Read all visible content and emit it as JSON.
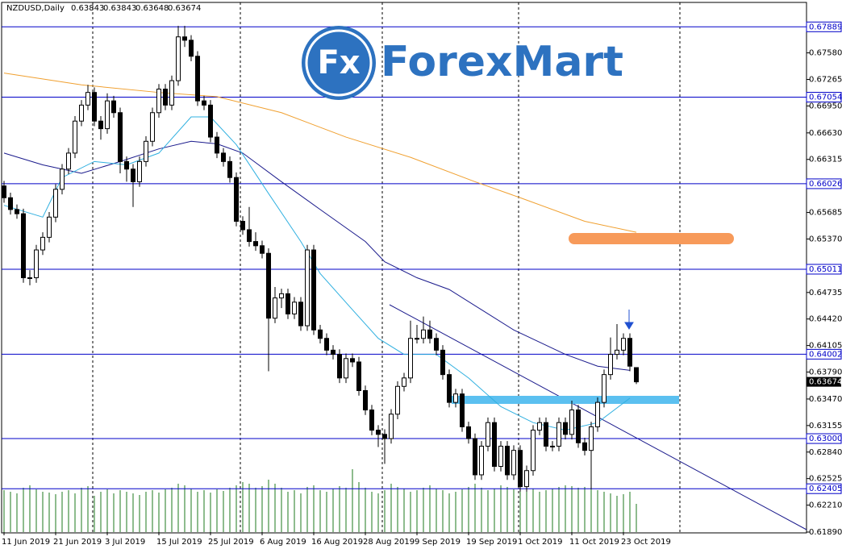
{
  "logo": {
    "badge": "Fx",
    "name": "ForexMart"
  },
  "chart_data": {
    "type": "candlestick",
    "title": "NZDUSD,Daily",
    "ylim": [
      0.6189,
      0.6816
    ],
    "yticks": [
      {
        "value": 0.6758,
        "label": "0.67580"
      },
      0.67265,
      {
        "value": 0.6695,
        "label": "0.66950"
      },
      {
        "value": 0.6663,
        "label": "0.66630"
      },
      0.66315,
      0.65685,
      {
        "value": 0.6537,
        "label": "0.65370"
      },
      0.64735,
      {
        "value": 0.6442,
        "label": "0.64420"
      },
      0.64105,
      {
        "value": 0.6379,
        "label": "0.63790"
      },
      {
        "value": 0.6347,
        "label": "0.63470"
      },
      0.63155,
      {
        "value": 0.6284,
        "label": "0.62840"
      },
      0.62525,
      {
        "value": 0.6221,
        "label": "0.62210"
      },
      {
        "value": 0.6189,
        "label": "0.61890"
      }
    ],
    "levels": [
      0.67889,
      0.67054,
      0.66026,
      0.65011,
      0.64002,
      {
        "value": 0.63,
        "label": "0.63000"
      },
      0.62405
    ],
    "level_color": "#0000c8",
    "up_color": "#ffffff",
    "down_color": "#000000",
    "volume_color": "#1e7a1e",
    "categories": [
      "11 Jun 2019",
      null,
      null,
      null,
      null,
      null,
      null,
      null,
      "21 Jun 2019",
      null,
      null,
      null,
      null,
      null,
      null,
      null,
      "3 Jul 2019",
      null,
      null,
      null,
      null,
      null,
      null,
      null,
      "15 Jul 2019",
      null,
      null,
      null,
      null,
      null,
      null,
      null,
      "25 Jul 2019",
      null,
      null,
      null,
      null,
      null,
      null,
      null,
      "6 Aug 2019",
      null,
      null,
      null,
      null,
      null,
      null,
      null,
      "16 Aug 2019",
      null,
      null,
      null,
      null,
      null,
      null,
      null,
      "28 Aug 2019",
      null,
      null,
      null,
      null,
      null,
      null,
      null,
      "9 Sep 2019",
      null,
      null,
      null,
      null,
      null,
      null,
      null,
      "19 Sep 2019",
      null,
      null,
      null,
      null,
      null,
      null,
      null,
      "1 Oct 2019",
      null,
      null,
      null,
      null,
      null,
      null,
      null,
      "11 Oct 2019",
      null,
      null,
      null,
      null,
      null,
      null,
      null,
      "23 Oct 2019",
      null,
      null
    ],
    "ohlc": [
      [
        0.66,
        0.6606,
        0.658,
        0.6586
      ],
      [
        0.6586,
        0.6592,
        0.6566,
        0.6572
      ],
      [
        0.6572,
        0.6578,
        0.6561,
        0.6567
      ],
      [
        0.6567,
        0.6573,
        0.6485,
        0.6491
      ],
      [
        0.6491,
        0.65,
        0.6482,
        0.6491
      ],
      [
        0.6491,
        0.653,
        0.6485,
        0.6524
      ],
      [
        0.6524,
        0.6545,
        0.6518,
        0.6539
      ],
      [
        0.6539,
        0.6569,
        0.6533,
        0.6563
      ],
      [
        0.6563,
        0.6602,
        0.6557,
        0.6596
      ],
      [
        0.6596,
        0.6626,
        0.659,
        0.662
      ],
      [
        0.662,
        0.6645,
        0.6614,
        0.6639
      ],
      [
        0.6639,
        0.6683,
        0.6633,
        0.6677
      ],
      [
        0.6677,
        0.6702,
        0.6671,
        0.6696
      ],
      [
        0.6696,
        0.672,
        0.669,
        0.6711
      ],
      [
        0.6711,
        0.6717,
        0.6671,
        0.6677
      ],
      [
        0.6677,
        0.6683,
        0.6655,
        0.6668
      ],
      [
        0.6668,
        0.671,
        0.6662,
        0.6701
      ],
      [
        0.6701,
        0.6707,
        0.6681,
        0.6687
      ],
      [
        0.6687,
        0.6693,
        0.6615,
        0.6629
      ],
      [
        0.6629,
        0.6635,
        0.6605,
        0.662
      ],
      [
        0.662,
        0.6626,
        0.6575,
        0.6605
      ],
      [
        0.6605,
        0.6635,
        0.6599,
        0.6629
      ],
      [
        0.6629,
        0.6659,
        0.6623,
        0.6653
      ],
      [
        0.6653,
        0.6693,
        0.6647,
        0.6687
      ],
      [
        0.6687,
        0.6721,
        0.6681,
        0.6715
      ],
      [
        0.6715,
        0.6721,
        0.669,
        0.6696
      ],
      [
        0.6696,
        0.6731,
        0.669,
        0.6725
      ],
      [
        0.6725,
        0.679,
        0.6719,
        0.6777
      ],
      [
        0.6777,
        0.679,
        0.6765,
        0.6773
      ],
      [
        0.6773,
        0.6779,
        0.6748,
        0.6754
      ],
      [
        0.6754,
        0.676,
        0.6695,
        0.6701
      ],
      [
        0.6701,
        0.6707,
        0.669,
        0.6696
      ],
      [
        0.6696,
        0.6702,
        0.6652,
        0.6658
      ],
      [
        0.6658,
        0.6664,
        0.6633,
        0.6639
      ],
      [
        0.6639,
        0.6645,
        0.6623,
        0.6629
      ],
      [
        0.6629,
        0.6635,
        0.6604,
        0.661
      ],
      [
        0.661,
        0.6616,
        0.6552,
        0.6558
      ],
      [
        0.6558,
        0.6564,
        0.6542,
        0.6548
      ],
      [
        0.6548,
        0.6575,
        0.6528,
        0.6534
      ],
      [
        0.6534,
        0.6545,
        0.6523,
        0.6529
      ],
      [
        0.6529,
        0.6535,
        0.6514,
        0.652
      ],
      [
        0.652,
        0.6526,
        0.638,
        0.6443
      ],
      [
        0.6443,
        0.648,
        0.6437,
        0.6467
      ],
      [
        0.6467,
        0.6478,
        0.6455,
        0.6472
      ],
      [
        0.6472,
        0.6478,
        0.6442,
        0.6448
      ],
      [
        0.6448,
        0.6468,
        0.6442,
        0.6462
      ],
      [
        0.6462,
        0.6468,
        0.6428,
        0.6434
      ],
      [
        0.6434,
        0.653,
        0.6428,
        0.6524
      ],
      [
        0.6524,
        0.653,
        0.6423,
        0.6429
      ],
      [
        0.6429,
        0.6435,
        0.6413,
        0.6419
      ],
      [
        0.6419,
        0.6425,
        0.6399,
        0.6405
      ],
      [
        0.6405,
        0.6411,
        0.6394,
        0.64
      ],
      [
        0.64,
        0.6406,
        0.6366,
        0.6372
      ],
      [
        0.6372,
        0.6401,
        0.6366,
        0.6395
      ],
      [
        0.6395,
        0.6401,
        0.6385,
        0.6391
      ],
      [
        0.6391,
        0.6397,
        0.6351,
        0.6357
      ],
      [
        0.6357,
        0.6363,
        0.6328,
        0.6334
      ],
      [
        0.6334,
        0.634,
        0.6304,
        0.631
      ],
      [
        0.631,
        0.6316,
        0.629,
        0.6305
      ],
      [
        0.6305,
        0.6311,
        0.627,
        0.63
      ],
      [
        0.63,
        0.6335,
        0.6294,
        0.6329
      ],
      [
        0.6329,
        0.6368,
        0.6323,
        0.6362
      ],
      [
        0.6362,
        0.6378,
        0.6356,
        0.6372
      ],
      [
        0.6372,
        0.644,
        0.6366,
        0.6419
      ],
      [
        0.6419,
        0.6435,
        0.6413,
        0.6419
      ],
      [
        0.6419,
        0.6445,
        0.6413,
        0.6429
      ],
      [
        0.6429,
        0.644,
        0.6413,
        0.6419
      ],
      [
        0.6419,
        0.6425,
        0.6399,
        0.6405
      ],
      [
        0.6405,
        0.6411,
        0.637,
        0.6376
      ],
      [
        0.6376,
        0.6382,
        0.6337,
        0.6343
      ],
      [
        0.6343,
        0.6359,
        0.6337,
        0.6353
      ],
      [
        0.6353,
        0.6359,
        0.6308,
        0.6314
      ],
      [
        0.6314,
        0.632,
        0.6294,
        0.63
      ],
      [
        0.63,
        0.6306,
        0.6251,
        0.6257
      ],
      [
        0.6257,
        0.6297,
        0.6251,
        0.6291
      ],
      [
        0.6291,
        0.6325,
        0.6285,
        0.6319
      ],
      [
        0.6319,
        0.6325,
        0.6261,
        0.6267
      ],
      [
        0.6267,
        0.6297,
        0.6261,
        0.6291
      ],
      [
        0.6291,
        0.6297,
        0.6251,
        0.6257
      ],
      [
        0.6257,
        0.6292,
        0.6251,
        0.6286
      ],
      [
        0.6286,
        0.6292,
        0.6237,
        0.6243
      ],
      [
        0.6243,
        0.6268,
        0.6237,
        0.6262
      ],
      [
        0.6262,
        0.6316,
        0.6256,
        0.631
      ],
      [
        0.631,
        0.6325,
        0.6304,
        0.6319
      ],
      [
        0.6319,
        0.6325,
        0.6285,
        0.6291
      ],
      [
        0.6291,
        0.6297,
        0.6285,
        0.6291
      ],
      [
        0.6291,
        0.6325,
        0.6285,
        0.6319
      ],
      [
        0.6319,
        0.6325,
        0.6299,
        0.6305
      ],
      [
        0.6305,
        0.6345,
        0.6299,
        0.6334
      ],
      [
        0.6334,
        0.634,
        0.6289,
        0.6295
      ],
      [
        0.6295,
        0.6301,
        0.628,
        0.6286
      ],
      [
        0.6286,
        0.632,
        0.624,
        0.6314
      ],
      [
        0.6314,
        0.6349,
        0.6308,
        0.6343
      ],
      [
        0.6343,
        0.6382,
        0.6337,
        0.6376
      ],
      [
        0.6376,
        0.642,
        0.637,
        0.64
      ],
      [
        0.64,
        0.6436,
        0.6394,
        0.6405
      ],
      [
        0.6405,
        0.6425,
        0.6399,
        0.6419
      ],
      [
        0.6419,
        0.6425,
        0.638,
        0.6386
      ],
      [
        0.63843,
        0.63843,
        0.63648,
        0.63674
      ]
    ],
    "volume": [
      52,
      50,
      48,
      55,
      58,
      53,
      50,
      49,
      47,
      50,
      52,
      48,
      55,
      57,
      45,
      50,
      53,
      48,
      52,
      50,
      48,
      46,
      50,
      52,
      49,
      53,
      55,
      60,
      58,
      54,
      50,
      52,
      49,
      53,
      51,
      55,
      58,
      62,
      60,
      55,
      57,
      65,
      60,
      55,
      50,
      52,
      48,
      56,
      58,
      52,
      50,
      54,
      57,
      55,
      78,
      62,
      55,
      50,
      48,
      52,
      60,
      56,
      54,
      50,
      52,
      55,
      58,
      54,
      52,
      48,
      50,
      53,
      56,
      60,
      55,
      52,
      54,
      58,
      56,
      53,
      57,
      55,
      54,
      50,
      52,
      54,
      56,
      58,
      57,
      55,
      56,
      60,
      52,
      50,
      48,
      45,
      47,
      50,
      35
    ],
    "series": [
      {
        "color": "#f0a030",
        "x": [
          0,
          12,
          24,
          33,
          43,
          53,
          63,
          73,
          80,
          90,
          98
        ],
        "values": [
          0.6734,
          0.672,
          0.6711,
          0.6706,
          0.6687,
          0.6658,
          0.6634,
          0.6605,
          0.6586,
          0.6558,
          0.6545
        ]
      },
      {
        "color": "#1a1a8c",
        "x": [
          0,
          6,
          12,
          18,
          24,
          29,
          33,
          37,
          43,
          49,
          56,
          59,
          64,
          69,
          74,
          79,
          87,
          92,
          97
        ],
        "values": [
          0.6639,
          0.6625,
          0.6615,
          0.6629,
          0.6644,
          0.6653,
          0.665,
          0.6639,
          0.6605,
          0.6572,
          0.6534,
          0.651,
          0.6491,
          0.6477,
          0.6453,
          0.6429,
          0.64,
          0.6386,
          0.6381
        ]
      },
      {
        "color": "#30b0e0",
        "x": [
          0,
          6,
          9,
          14,
          19,
          24,
          29,
          32,
          36,
          41,
          46,
          49,
          54,
          58,
          62,
          67,
          72,
          77,
          82,
          87,
          92,
          97
        ],
        "values": [
          0.6577,
          0.6563,
          0.661,
          0.6629,
          0.6625,
          0.6639,
          0.6682,
          0.6682,
          0.6649,
          0.6591,
          0.6534,
          0.6496,
          0.6453,
          0.6419,
          0.64,
          0.64,
          0.6372,
          0.6338,
          0.6319,
          0.631,
          0.6319,
          0.6348
        ]
      }
    ]
  }
}
